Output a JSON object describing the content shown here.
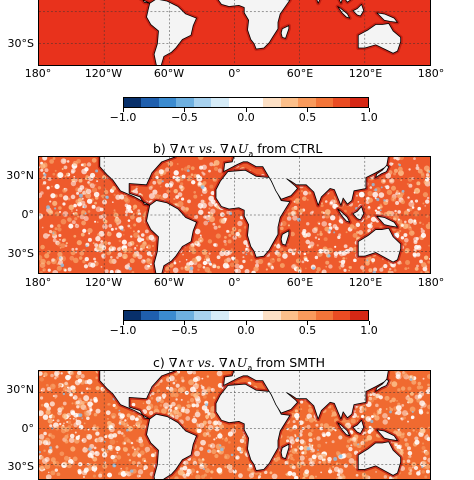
{
  "panels": [
    {
      "id": "a",
      "title_prefix": "",
      "title_suffix": "",
      "y_ticks": [
        "30°S"
      ],
      "x_ticks": [
        "180°",
        "120°W",
        "60°W",
        "0°",
        "60°E",
        "120°E",
        "180°"
      ],
      "fill_color": "#e8321c"
    },
    {
      "id": "b",
      "title_prefix": "b) ",
      "title_suffix": " from CTRL",
      "y_ticks": [
        "30°N",
        "0°",
        "30°S"
      ],
      "x_ticks": [
        "180°",
        "120°W",
        "60°W",
        "0°",
        "60°E",
        "120°E",
        "180°"
      ],
      "fill_color": "#ee5a2c"
    },
    {
      "id": "c",
      "title_prefix": "c) ",
      "title_suffix": " from SMTH",
      "y_ticks": [
        "30°N",
        "0°",
        "30°S"
      ],
      "x_ticks": [],
      "fill_color": "#f06a30"
    }
  ],
  "title_math": "∇∧τ vs. ∇∧U",
  "title_math_sub": "a",
  "colorbar": {
    "ticks": [
      "−1.0",
      "−0.5",
      "0.0",
      "0.5",
      "1.0"
    ],
    "colors": [
      "#08306b",
      "#1f5fae",
      "#3b8bd0",
      "#6eb0e0",
      "#a8d2ef",
      "#d6ecf8",
      "#ffffff",
      "#ffffff",
      "#fde0c5",
      "#fcbf8a",
      "#f99a5c",
      "#f37539",
      "#ea4c23",
      "#d62815"
    ]
  },
  "land_color": "#f4f4f4"
}
